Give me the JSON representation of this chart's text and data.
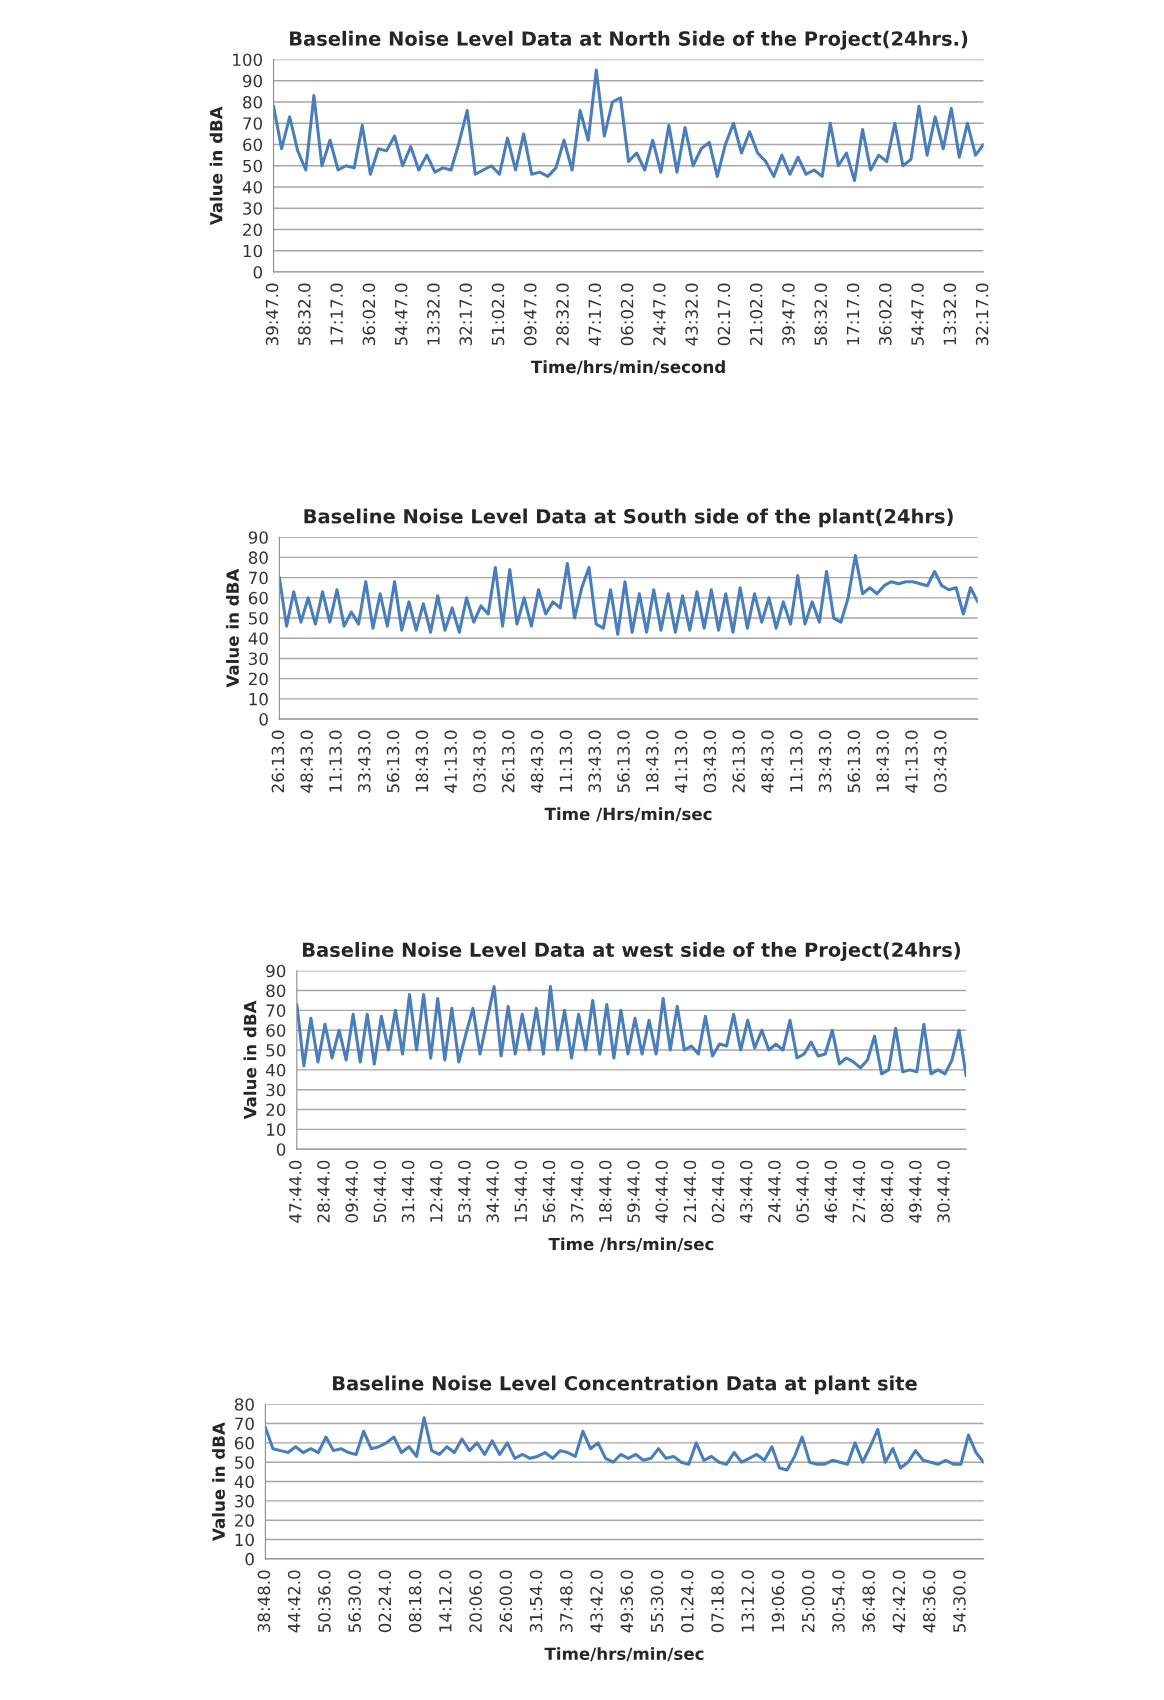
{
  "chart_data": [
    {
      "type": "line",
      "title": "Baseline Noise Level Data at North Side of the Project(24hrs.)",
      "xlabel": "Time/hrs/min/second",
      "ylabel": "Value in dBA",
      "grid": "y",
      "ylim": [
        0,
        100
      ],
      "yticks": [
        0,
        10,
        20,
        30,
        40,
        50,
        60,
        70,
        80,
        90,
        100
      ],
      "categories": [
        "39:47.0",
        null,
        null,
        null,
        "58:32.0",
        null,
        null,
        null,
        "17:17.0",
        null,
        null,
        null,
        "36:02.0",
        null,
        null,
        null,
        "54:47.0",
        null,
        null,
        null,
        "13:32.0",
        null,
        null,
        null,
        "32:17.0",
        null,
        null,
        null,
        "51:02.0",
        null,
        null,
        null,
        "09:47.0",
        null,
        null,
        null,
        "28:32.0",
        null,
        null,
        null,
        "47:17.0",
        null,
        null,
        null,
        "06:02.0",
        null,
        null,
        null,
        "24:47.0",
        null,
        null,
        null,
        "43:32.0",
        null,
        null,
        null,
        "02:17.0",
        null,
        null,
        null,
        "21:02.0",
        null,
        null,
        null,
        "39:47.0",
        null,
        null,
        null,
        "58:32.0",
        null,
        null,
        null,
        "17:17.0",
        null,
        null,
        null,
        "36:02.0",
        null,
        null,
        null,
        "54:47.0",
        null,
        null,
        null,
        "13:32.0",
        null,
        null,
        null,
        "32:17.0"
      ],
      "series": [
        {
          "color": "#4a7ebb",
          "values": [
            78,
            58,
            73,
            57,
            48,
            83,
            50,
            62,
            48,
            50,
            49,
            69,
            46,
            58,
            57,
            64,
            50,
            59,
            48,
            55,
            47,
            49,
            48,
            61,
            76,
            46,
            48,
            50,
            46,
            63,
            48,
            65,
            46,
            47,
            45,
            49,
            62,
            48,
            76,
            62,
            95,
            64,
            80,
            82,
            52,
            56,
            48,
            62,
            47,
            69,
            47,
            68,
            50,
            58,
            61,
            45,
            60,
            70,
            56,
            66,
            56,
            52,
            45,
            55,
            46,
            54,
            46,
            48,
            45,
            70,
            50,
            56,
            43,
            67,
            48,
            55,
            52,
            70,
            50,
            53,
            78,
            55,
            73,
            58,
            77,
            54,
            70,
            55,
            60
          ]
        }
      ]
    },
    {
      "type": "line",
      "title": "Baseline Noise Level Data at South side of the plant(24hrs)",
      "xlabel": "Time /Hrs/min/sec",
      "ylabel": "Value in dBA",
      "grid": "y",
      "ylim": [
        0,
        90
      ],
      "yticks": [
        0,
        10,
        20,
        30,
        40,
        50,
        60,
        70,
        80,
        90
      ],
      "categories": [
        "26:13.0",
        null,
        null,
        null,
        "48:43.0",
        null,
        null,
        null,
        "11:13.0",
        null,
        null,
        null,
        "33:43.0",
        null,
        null,
        null,
        "56:13.0",
        null,
        null,
        null,
        "18:43.0",
        null,
        null,
        null,
        "41:13.0",
        null,
        null,
        null,
        "03:43.0",
        null,
        null,
        null,
        "26:13.0",
        null,
        null,
        null,
        "48:43.0",
        null,
        null,
        null,
        "11:13.0",
        null,
        null,
        null,
        "33:43.0",
        null,
        null,
        null,
        "56:13.0",
        null,
        null,
        null,
        "18:43.0",
        null,
        null,
        null,
        "41:13.0",
        null,
        null,
        null,
        "03:43.0",
        null,
        null,
        null,
        "26:13.0",
        null,
        null,
        null,
        "48:43.0",
        null,
        null,
        null,
        "11:13.0",
        null,
        null,
        null,
        "33:43.0",
        null,
        null,
        null,
        "56:13.0",
        null,
        null,
        null,
        "18:43.0",
        null,
        null,
        null,
        "41:13.0",
        null,
        null,
        null,
        "03:43.0",
        null,
        null,
        null,
        null,
        null
      ],
      "series": [
        {
          "color": "#4a7ebb",
          "values": [
            70,
            46,
            63,
            48,
            60,
            47,
            63,
            48,
            64,
            46,
            53,
            47,
            68,
            45,
            62,
            46,
            68,
            44,
            58,
            44,
            57,
            43,
            61,
            44,
            55,
            43,
            60,
            48,
            56,
            52,
            75,
            46,
            74,
            47,
            60,
            46,
            64,
            52,
            58,
            55,
            77,
            50,
            65,
            75,
            47,
            45,
            64,
            42,
            68,
            43,
            62,
            43,
            64,
            44,
            62,
            43,
            61,
            44,
            63,
            45,
            64,
            44,
            62,
            43,
            65,
            45,
            62,
            48,
            60,
            45,
            58,
            47,
            71,
            47,
            58,
            48,
            73,
            50,
            48,
            60,
            81,
            62,
            65,
            62,
            66,
            68,
            67,
            68,
            68,
            67,
            66,
            73,
            66,
            64,
            65,
            52,
            65,
            58
          ]
        }
      ]
    },
    {
      "type": "line",
      "title": "Baseline Noise Level Data at west side of the Project(24hrs)",
      "xlabel": "Time /hrs/min/sec",
      "ylabel": "Value in dBA",
      "grid": "y",
      "ylim": [
        0,
        90
      ],
      "yticks": [
        0,
        10,
        20,
        30,
        40,
        50,
        60,
        70,
        80,
        90
      ],
      "categories": [
        "47:44.0",
        null,
        null,
        null,
        "28:44.0",
        null,
        null,
        null,
        "09:44.0",
        null,
        null,
        null,
        "50:44.0",
        null,
        null,
        null,
        "31:44.0",
        null,
        null,
        null,
        "12:44.0",
        null,
        null,
        null,
        "53:44.0",
        null,
        null,
        null,
        "34:44.0",
        null,
        null,
        null,
        "15:44.0",
        null,
        null,
        null,
        "56:44.0",
        null,
        null,
        null,
        "37:44.0",
        null,
        null,
        null,
        "18:44.0",
        null,
        null,
        null,
        "59:44.0",
        null,
        null,
        null,
        "40:44.0",
        null,
        null,
        null,
        "21:44.0",
        null,
        null,
        null,
        "02:44.0",
        null,
        null,
        null,
        "43:44.0",
        null,
        null,
        null,
        "24:44.0",
        null,
        null,
        null,
        "05:44.0",
        null,
        null,
        null,
        "46:44.0",
        null,
        null,
        null,
        "27:44.0",
        null,
        null,
        null,
        "08:44.0",
        null,
        null,
        null,
        "49:44.0",
        null,
        null,
        null,
        "30:44.0",
        null,
        null,
        null
      ],
      "series": [
        {
          "color": "#4a7ebb",
          "values": [
            73,
            42,
            66,
            44,
            63,
            46,
            60,
            45,
            68,
            44,
            68,
            43,
            67,
            50,
            70,
            48,
            78,
            50,
            78,
            46,
            76,
            45,
            71,
            44,
            58,
            71,
            48,
            65,
            82,
            47,
            72,
            48,
            68,
            50,
            71,
            48,
            82,
            50,
            70,
            46,
            68,
            50,
            75,
            48,
            73,
            46,
            70,
            48,
            66,
            48,
            65,
            48,
            76,
            50,
            72,
            50,
            52,
            48,
            67,
            47,
            53,
            52,
            68,
            50,
            65,
            51,
            60,
            50,
            53,
            50,
            65,
            46,
            48,
            54,
            47,
            48,
            60,
            43,
            46,
            44,
            41,
            45,
            57,
            38,
            40,
            61,
            39,
            40,
            39,
            63,
            38,
            40,
            38,
            45,
            60,
            37
          ]
        }
      ]
    },
    {
      "type": "line",
      "title": "Baseline Noise Level Concentration Data at plant site",
      "xlabel": "Time/hrs/min/sec",
      "ylabel": "Value in dBA",
      "grid": "y",
      "ylim": [
        0,
        80
      ],
      "yticks": [
        0,
        10,
        20,
        30,
        40,
        50,
        60,
        70,
        80
      ],
      "categories": [
        "38:48.0",
        null,
        null,
        null,
        "44:42.0",
        null,
        null,
        null,
        "50:36.0",
        null,
        null,
        null,
        "56:30.0",
        null,
        null,
        null,
        "02:24.0",
        null,
        null,
        null,
        "08:18.0",
        null,
        null,
        null,
        "14:12.0",
        null,
        null,
        null,
        "20:06.0",
        null,
        null,
        null,
        "26:00.0",
        null,
        null,
        null,
        "31:54.0",
        null,
        null,
        null,
        "37:48.0",
        null,
        null,
        null,
        "43:42.0",
        null,
        null,
        null,
        "49:36.0",
        null,
        null,
        null,
        "55:30.0",
        null,
        null,
        null,
        "01:24.0",
        null,
        null,
        null,
        "07:18.0",
        null,
        null,
        null,
        "13:12.0",
        null,
        null,
        null,
        "19:06.0",
        null,
        null,
        null,
        "25:00.0",
        null,
        null,
        null,
        "30:54.0",
        null,
        null,
        null,
        "36:48.0",
        null,
        null,
        null,
        "42:42.0",
        null,
        null,
        null,
        "48:36.0",
        null,
        null,
        null,
        "54:30.0",
        null,
        null,
        null
      ],
      "series": [
        {
          "color": "#4a7ebb",
          "values": [
            68,
            57,
            56,
            55,
            58,
            55,
            57,
            55,
            63,
            56,
            57,
            55,
            54,
            66,
            57,
            58,
            60,
            63,
            55,
            58,
            53,
            73,
            56,
            54,
            58,
            55,
            62,
            56,
            60,
            54,
            61,
            54,
            60,
            52,
            54,
            52,
            53,
            55,
            52,
            56,
            55,
            53,
            66,
            57,
            60,
            52,
            50,
            54,
            52,
            54,
            51,
            52,
            57,
            52,
            53,
            50,
            49,
            60,
            51,
            53,
            50,
            49,
            55,
            50,
            52,
            54,
            51,
            58,
            47,
            46,
            53,
            63,
            50,
            49,
            49,
            51,
            50,
            49,
            60,
            50,
            58,
            67,
            50,
            57,
            47,
            50,
            56,
            51,
            50,
            49,
            51,
            49,
            49,
            64,
            55,
            50
          ]
        }
      ]
    }
  ]
}
